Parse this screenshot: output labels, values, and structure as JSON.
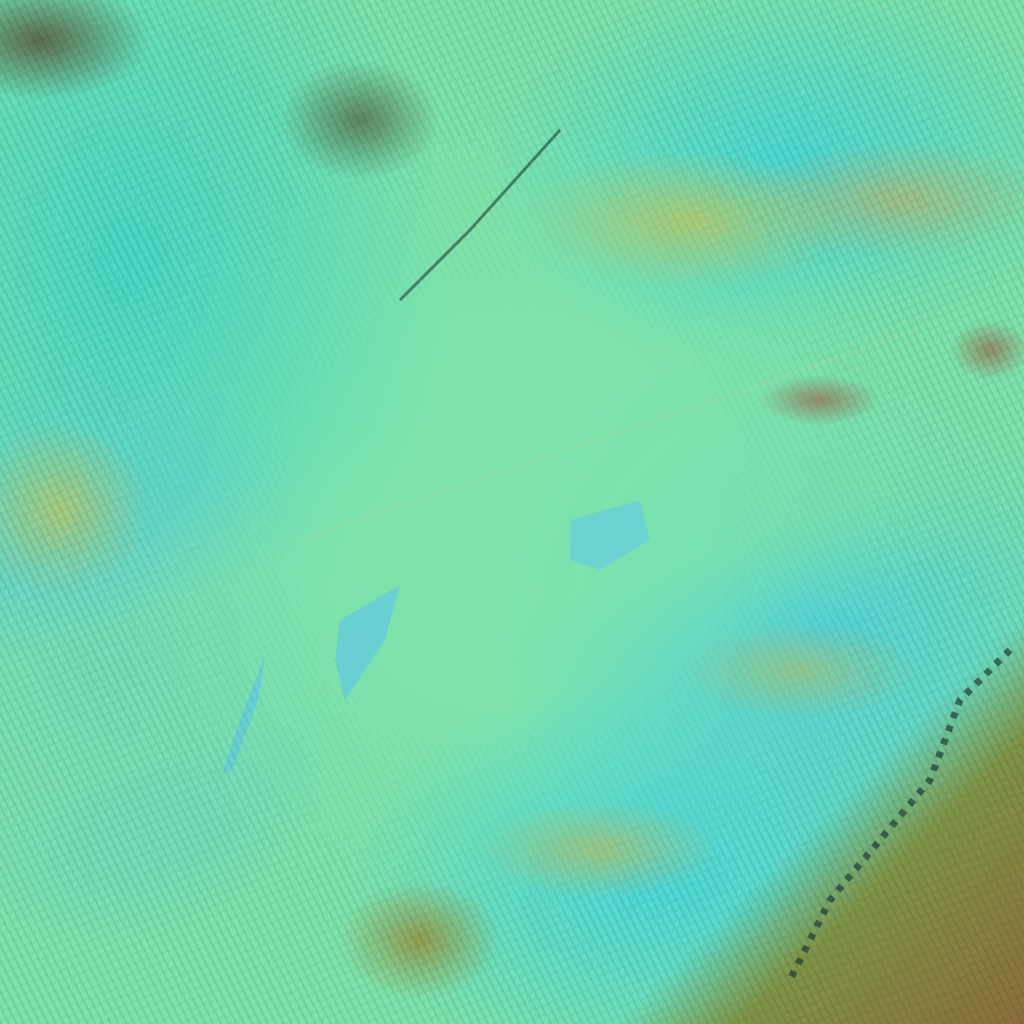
{
  "image": {
    "kind": "false-color satellite imagery",
    "colors": {
      "clear_band": "#7ee3ab",
      "cloud_cyan": "#3fdcd6",
      "cloud_light": "#5fd8e6",
      "dust_yellow": "#b9c86a",
      "cloud_red": "#a0523c",
      "land_brown": "#8e7a3c",
      "dark_streak": "#1f3f3a"
    }
  }
}
